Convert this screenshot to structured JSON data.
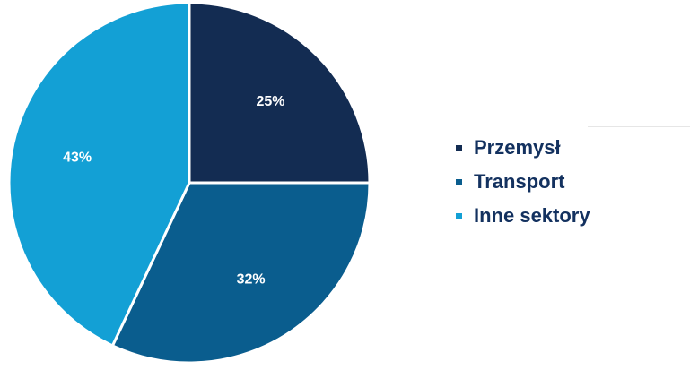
{
  "chart_data": {
    "type": "pie",
    "categories": [
      "Przemysł",
      "Transport",
      "Inne sektory"
    ],
    "values": [
      25,
      32,
      43
    ],
    "labels": [
      "25%",
      "32%",
      "43%"
    ],
    "colors": [
      "#132c52",
      "#0a5d8e",
      "#13a0d5"
    ],
    "start_angle_deg": 0,
    "direction": "clockwise",
    "legend_position": "right"
  },
  "legend": {
    "items": [
      {
        "label": "Przemysł",
        "color": "#132c52"
      },
      {
        "label": "Transport",
        "color": "#0a5d8e"
      },
      {
        "label": "Inne sektory",
        "color": "#13a0d5"
      }
    ]
  }
}
